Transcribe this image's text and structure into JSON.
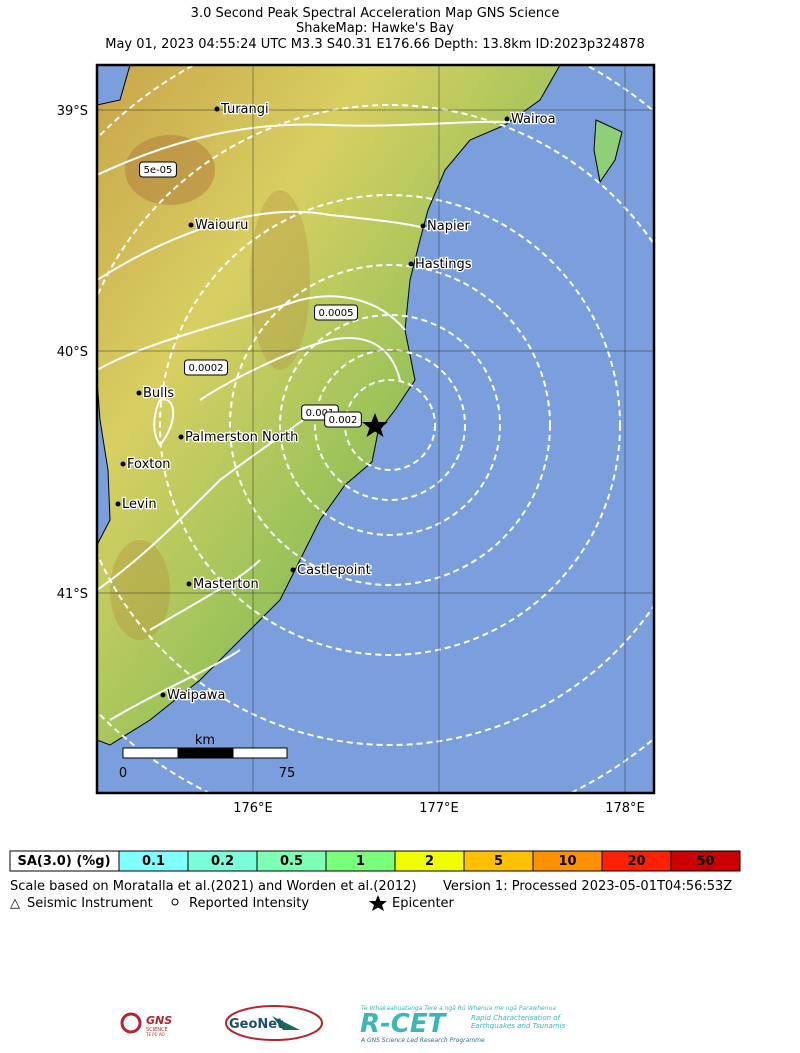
{
  "header": {
    "lines": [
      "3.0 Second Peak Spectral Acceleration Map GNS Science",
      "ShakeMap: Hawke's Bay",
      "May 01, 2023 04:55:24 UTC M3.3 S40.31 E176.66 Depth: 13.8km ID:2023p324878"
    ]
  },
  "map": {
    "lat_labels": [
      "39°S",
      "40°S",
      "41°S"
    ],
    "lon_labels": [
      "176°E",
      "177°E",
      "178°E"
    ],
    "cities": [
      "Turangi",
      "Wairoa",
      "Waiouru",
      "Napier",
      "Hastings",
      "Bulls",
      "Palmerston North",
      "Foxton",
      "Levin",
      "Castlepoint",
      "Masterton",
      "Waipawa"
    ],
    "contour_labels": [
      "5e-05",
      "0.0005",
      "0.0002",
      "0.001",
      "0.002"
    ],
    "scale_bar": {
      "unit": "km",
      "labels": [
        "0",
        "75"
      ]
    }
  },
  "legend": {
    "title": "SA(3.0) (%g)",
    "bins": [
      {
        "label": "0.1",
        "color": "#80ffff"
      },
      {
        "label": "0.2",
        "color": "#7affda"
      },
      {
        "label": "0.5",
        "color": "#7dffb4"
      },
      {
        "label": "1",
        "color": "#7aff7a"
      },
      {
        "label": "2",
        "color": "#f0ff00"
      },
      {
        "label": "5",
        "color": "#ffc000"
      },
      {
        "label": "10",
        "color": "#ff9000"
      },
      {
        "label": "20",
        "color": "#ff2000"
      },
      {
        "label": "50",
        "color": "#cc0000"
      }
    ]
  },
  "footer": {
    "scale_note": "Scale based on Moratalla et al.(2021) and Worden et al.(2012)",
    "version": "Version 1: Processed 2023-05-01T04:56:53Z",
    "symbols": [
      "Seismic Instrument",
      "Reported Intensity",
      "Epicenter"
    ]
  },
  "logos": {
    "gns": [
      "GNS",
      "SCIENCE",
      "TE PŪ AO"
    ],
    "geonet": "GeoNet",
    "rcet": {
      "tagline": "Te Whakaahuatanga Tere a ngā Rū Whenua me ngā Parawhenua",
      "name": "R-CET",
      "desc": [
        "Rapid Characterisation of",
        "Earthquakes and Tsunamis"
      ],
      "footer": "A GNS Science Led Research Programme"
    }
  }
}
